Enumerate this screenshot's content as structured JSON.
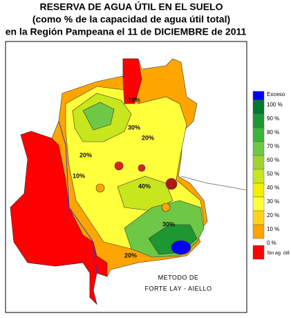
{
  "header": {
    "title": [
      "RESERVA DE AGUA ÚTIL EN EL SUELO",
      "(como % de la capacidad de agua útil total)",
      "en la Región Pampeana el 11 de DICIEMBRE de 2011"
    ]
  },
  "legend": {
    "items": [
      {
        "label": "Exceso",
        "color": "#0000ff"
      },
      {
        "label": "100 %",
        "color": "#00782d"
      },
      {
        "label": "90 %",
        "color": "#1e9632"
      },
      {
        "label": "80 %",
        "color": "#3cb43c"
      },
      {
        "label": "70 %",
        "color": "#6ec846"
      },
      {
        "label": "60 %",
        "color": "#a0d232"
      },
      {
        "label": "50 %",
        "color": "#c8e61e"
      },
      {
        "label": "40 %",
        "color": "#f0f000"
      },
      {
        "label": "30 %",
        "color": "#ffff3c"
      },
      {
        "label": "20 %",
        "color": "#ffd21e"
      },
      {
        "label": "10 %",
        "color": "#ffa500"
      },
      {
        "label": "0 %",
        "color": null
      },
      {
        "label": "Sin ag. útil",
        "color": "#ff0000"
      }
    ]
  },
  "map": {
    "contour_labels": [
      "10%",
      "20%",
      "30%",
      "20%",
      "40%",
      "10%",
      "30%",
      "20%"
    ]
  },
  "note": [
    "METODO DE",
    "FORTE LAY - AIELLO"
  ]
}
